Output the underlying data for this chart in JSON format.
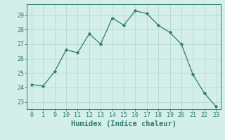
{
  "xlabel": "Humidex (Indice chaleur)",
  "x_labels": [
    0,
    1,
    9,
    10,
    11,
    12,
    13,
    14,
    15,
    16,
    17,
    18,
    19,
    20,
    21,
    22,
    23
  ],
  "x_positions": [
    0,
    1,
    2,
    3,
    4,
    5,
    6,
    7,
    8,
    9,
    10,
    11,
    12,
    13,
    14,
    15,
    16
  ],
  "y": [
    24.2,
    24.1,
    25.1,
    26.6,
    26.4,
    27.7,
    27.0,
    28.8,
    28.3,
    29.3,
    29.1,
    28.3,
    27.8,
    27.0,
    24.9,
    23.6,
    22.7
  ],
  "line_color": "#2e7d6e",
  "marker_color": "#2e7d6e",
  "bg_color": "#d4eeea",
  "grid_color": "#b8d8d4",
  "axis_color": "#2e7d6e",
  "tick_label_color": "#2e7d6e",
  "ylim": [
    22.5,
    29.75
  ],
  "yticks": [
    23,
    24,
    25,
    26,
    27,
    28,
    29
  ],
  "title_fontsize": 7,
  "label_fontsize": 7.5,
  "tick_fontsize": 6
}
